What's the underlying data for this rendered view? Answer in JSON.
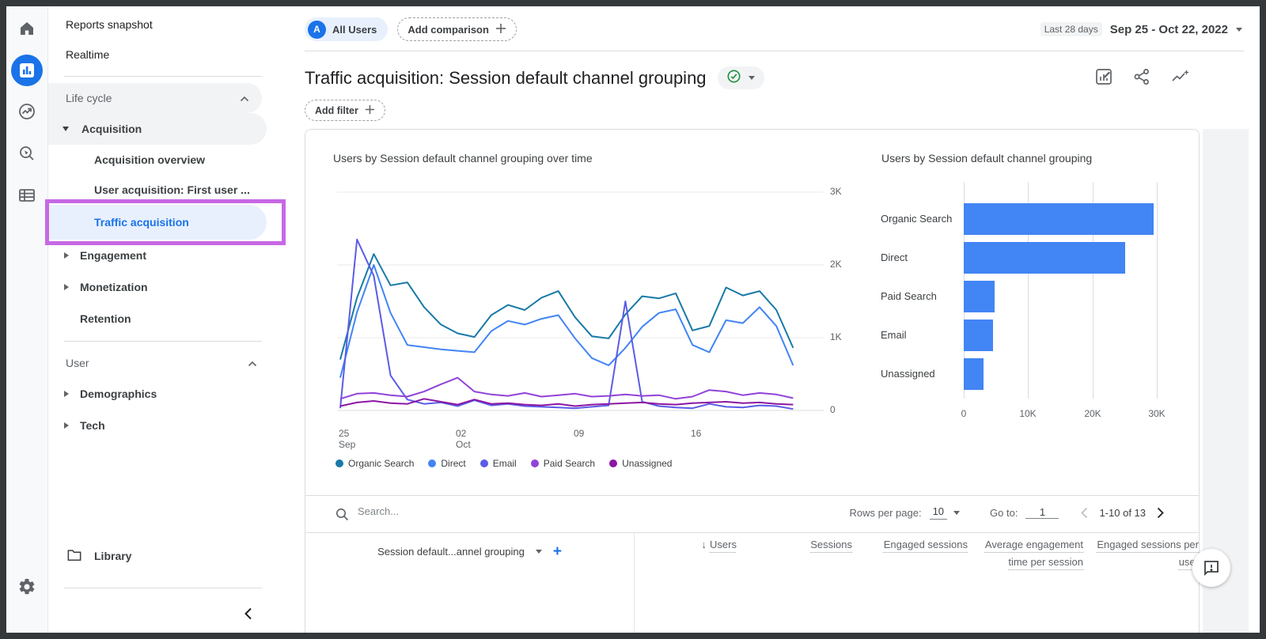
{
  "rail": {
    "icons": [
      "home",
      "reports",
      "advertising",
      "explore",
      "configure",
      "settings"
    ]
  },
  "sidebar": {
    "reports_snapshot": "Reports snapshot",
    "realtime": "Realtime",
    "life_cycle": "Life cycle",
    "acquisition": "Acquisition",
    "acquisition_overview": "Acquisition overview",
    "user_acquisition": "User acquisition: First user ...",
    "traffic_acquisition": "Traffic acquisition",
    "engagement": "Engagement",
    "monetization": "Monetization",
    "retention": "Retention",
    "user": "User",
    "demographics": "Demographics",
    "tech": "Tech",
    "library": "Library"
  },
  "annotation": {
    "color": "#c768e4",
    "target": "Traffic acquisition"
  },
  "header": {
    "avatar_letter": "A",
    "all_users": "All Users",
    "add_comparison": "Add comparison",
    "date_preset": "Last 28 days",
    "date_range": "Sep 25 - Oct 22, 2022",
    "title": "Traffic acquisition: Session default channel grouping",
    "add_filter": "Add filter"
  },
  "table": {
    "search_placeholder": "Search...",
    "rows_per_page_label": "Rows per page:",
    "rows_per_page_value": "10",
    "go_to_label": "Go to:",
    "go_to_value": "1",
    "pagination_range": "1-10 of 13",
    "dimension_column": "Session default...annel grouping",
    "sort_icon": "↓",
    "columns": [
      "Users",
      "Sessions",
      "Engaged sessions",
      "Average engagement time per session",
      "Engaged sessions per user"
    ]
  },
  "chart_data": [
    {
      "type": "line",
      "title": "Users by Session default channel grouping over time",
      "ylim": [
        0,
        3000
      ],
      "yticks": [
        "3K",
        "2K",
        "1K",
        "0"
      ],
      "xticks": [
        {
          "label": "25",
          "sub": "Sep"
        },
        {
          "label": "02",
          "sub": "Oct"
        },
        {
          "label": "09",
          "sub": ""
        },
        {
          "label": "16",
          "sub": ""
        }
      ],
      "x_range": [
        "Sep 25, 2022",
        "Oct 22, 2022"
      ],
      "legend_position": "bottom",
      "grid": true,
      "series": [
        {
          "name": "Organic Search",
          "color": "#1879a8",
          "values": [
            700,
            1550,
            2150,
            1720,
            1760,
            1420,
            1180,
            1060,
            1010,
            1310,
            1450,
            1380,
            1550,
            1640,
            1280,
            1020,
            990,
            1320,
            1570,
            1540,
            1610,
            1100,
            1160,
            1690,
            1580,
            1640,
            1380,
            860
          ]
        },
        {
          "name": "Direct",
          "color": "#4285f4",
          "values": [
            450,
            1350,
            2000,
            1340,
            900,
            870,
            840,
            820,
            800,
            1090,
            1230,
            1180,
            1260,
            1310,
            990,
            720,
            620,
            860,
            1150,
            1340,
            1390,
            900,
            800,
            1240,
            1200,
            1420,
            1160,
            620
          ]
        },
        {
          "name": "Email",
          "color": "#5b5ce6",
          "values": [
            30,
            2350,
            1850,
            480,
            150,
            90,
            110,
            60,
            140,
            70,
            90,
            60,
            50,
            40,
            30,
            50,
            70,
            1500,
            120,
            60,
            40,
            30,
            90,
            50,
            40,
            70,
            60,
            20
          ]
        },
        {
          "name": "Paid Search",
          "color": "#9143d8",
          "values": [
            160,
            230,
            240,
            210,
            190,
            260,
            360,
            450,
            260,
            220,
            200,
            240,
            190,
            210,
            230,
            190,
            200,
            220,
            200,
            210,
            160,
            190,
            280,
            260,
            210,
            240,
            220,
            170
          ]
        },
        {
          "name": "Unassigned",
          "color": "#8c16a3",
          "values": [
            60,
            110,
            130,
            100,
            90,
            160,
            120,
            80,
            150,
            90,
            100,
            80,
            70,
            90,
            60,
            80,
            90,
            100,
            110,
            90,
            80,
            100,
            110,
            120,
            100,
            110,
            90,
            80
          ]
        }
      ]
    },
    {
      "type": "bar",
      "orientation": "horizontal",
      "title": "Users by Session default channel grouping",
      "categories": [
        "Organic Search",
        "Direct",
        "Paid Search",
        "Email",
        "Unassigned"
      ],
      "values": [
        29500,
        25100,
        4800,
        4600,
        3100
      ],
      "bar_color": "#4285f4",
      "xlim": [
        0,
        30000
      ],
      "xticks": [
        "0",
        "10K",
        "20K",
        "30K"
      ],
      "grid": true
    }
  ]
}
